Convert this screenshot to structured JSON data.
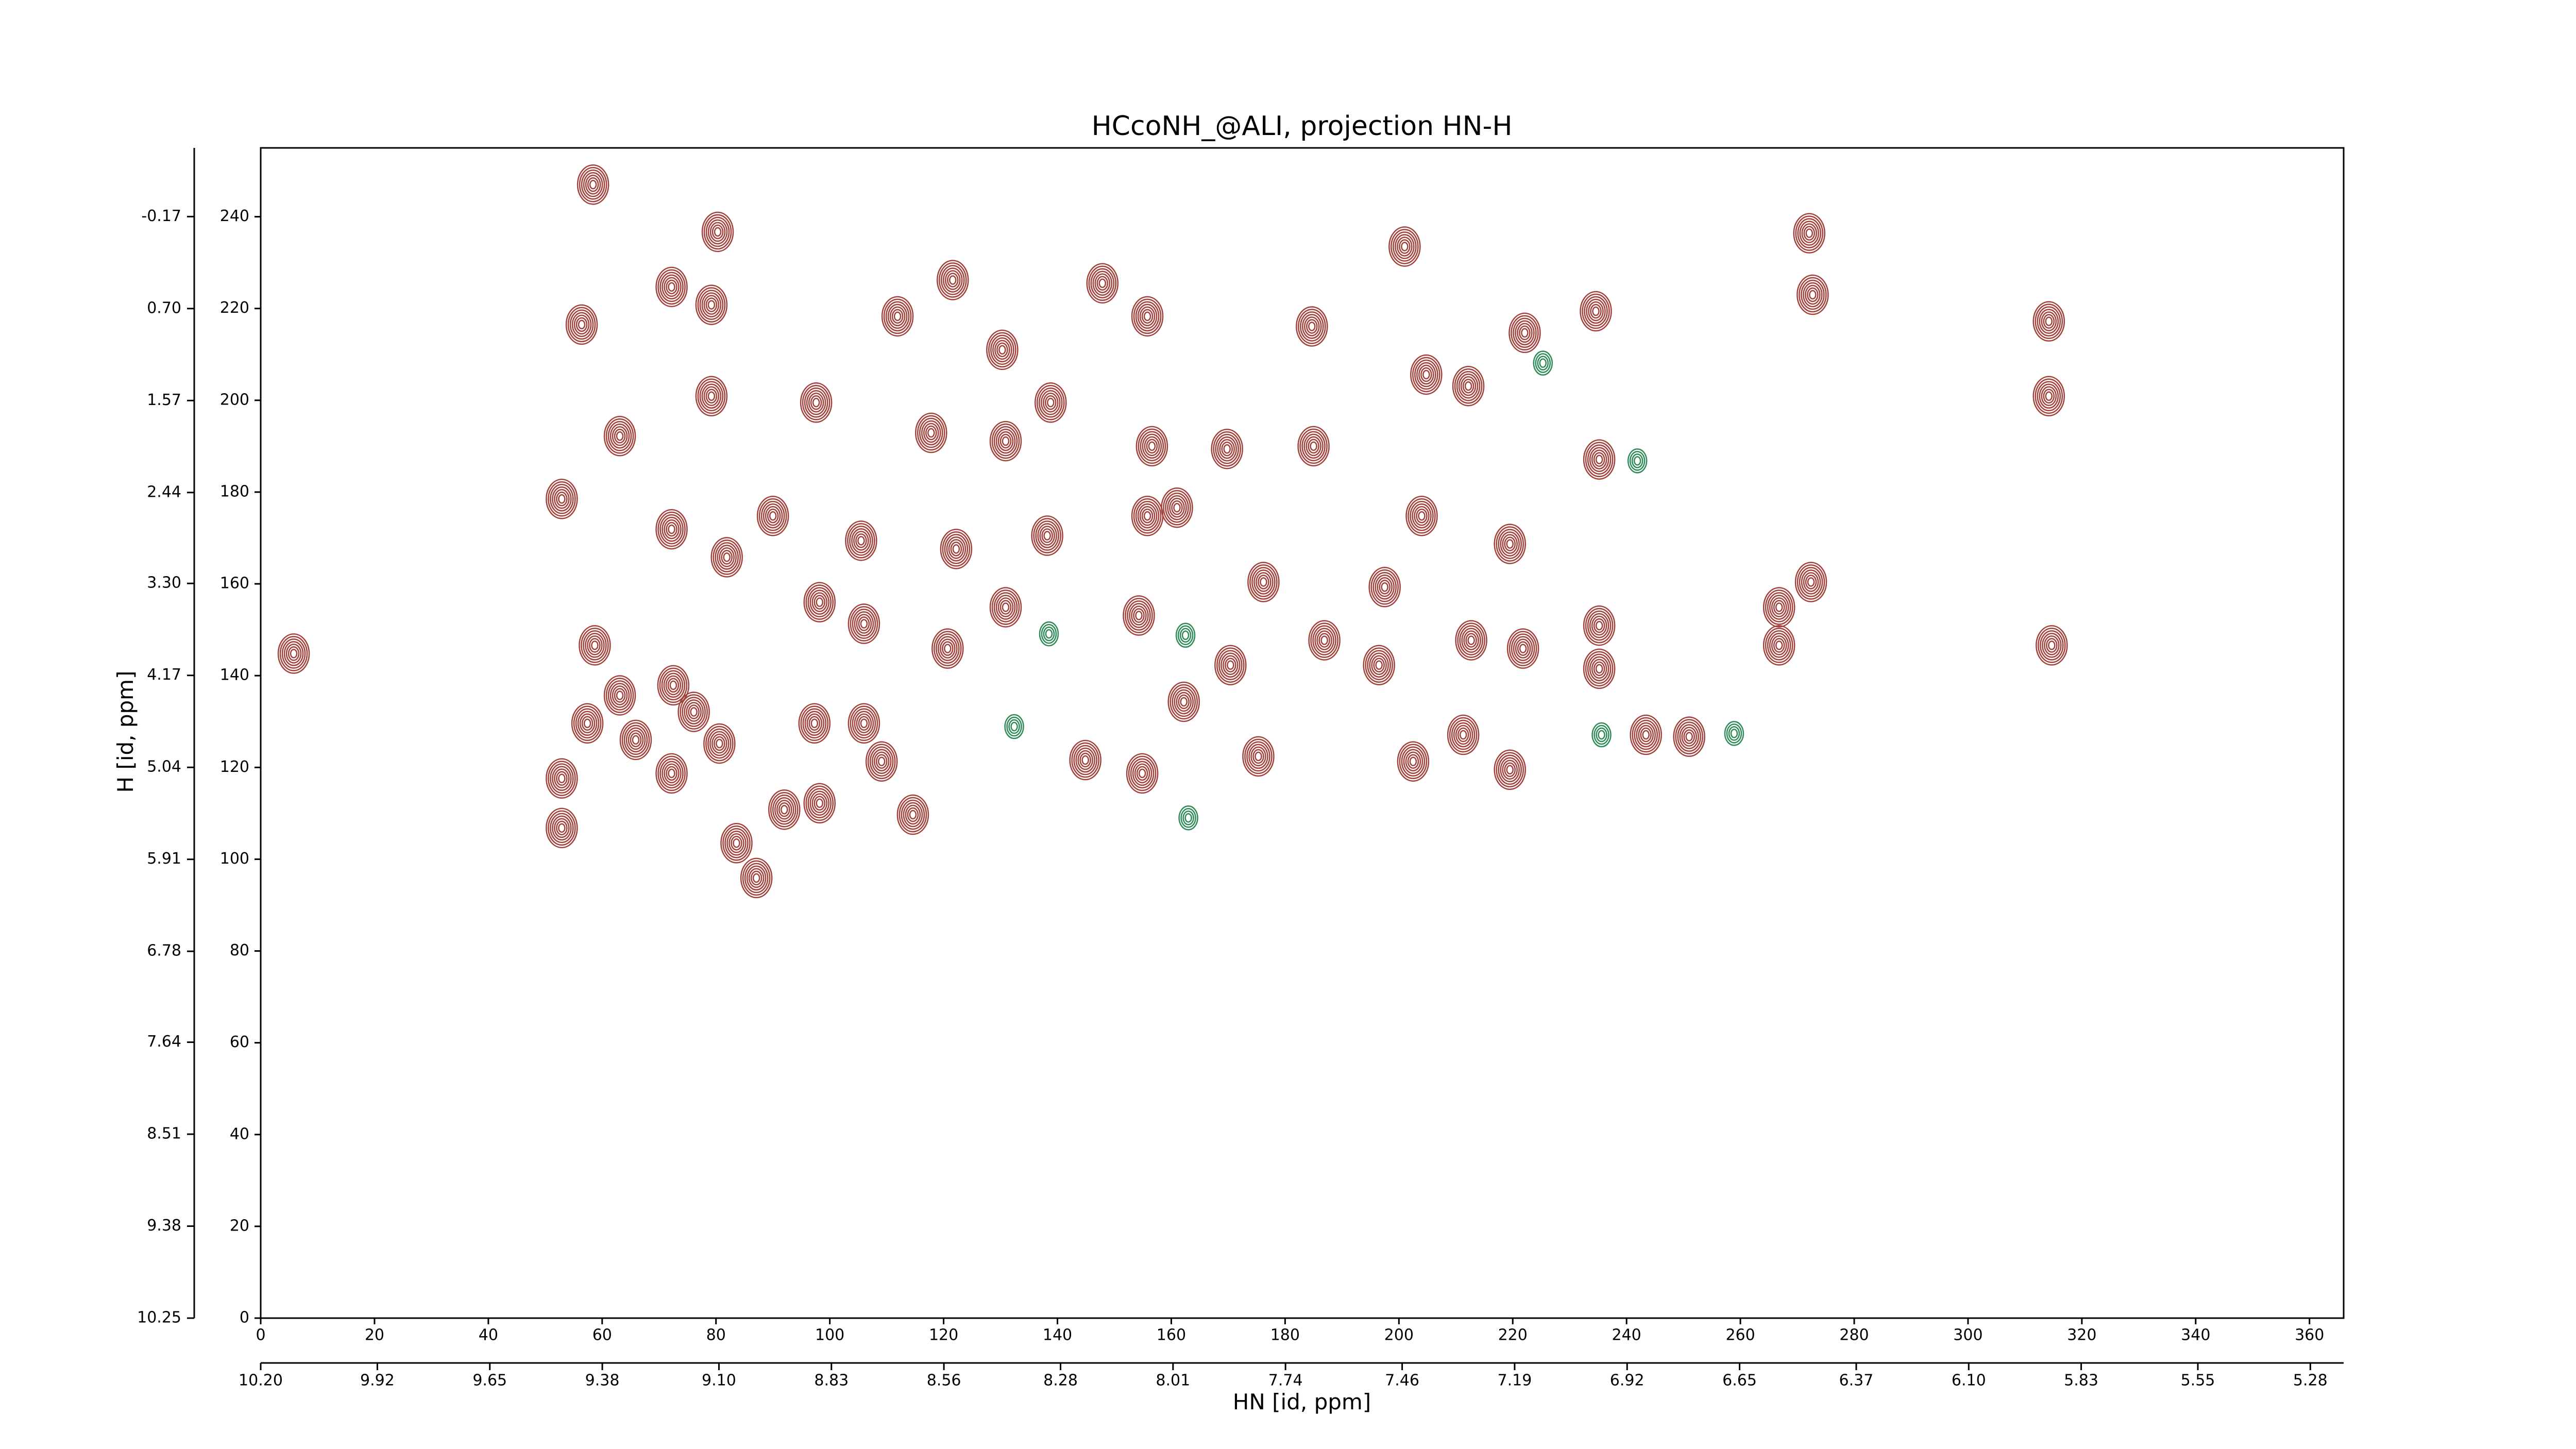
{
  "chart_data": {
    "type": "contour",
    "title": "HCcoNH_@ALI, projection HN-H",
    "x_label": "HN [id, ppm]",
    "y_label": "H [id, ppm]",
    "xlim": [
      0,
      366
    ],
    "xticks": [
      0,
      20,
      40,
      60,
      80,
      100,
      120,
      140,
      160,
      180,
      200,
      220,
      240,
      260,
      280,
      300,
      320,
      340,
      360
    ],
    "ylim": [
      0,
      255
    ],
    "yticks": [
      0,
      20,
      40,
      60,
      80,
      100,
      120,
      140,
      160,
      180,
      200,
      220,
      240
    ],
    "x2lim": [
      10.2,
      5.2
    ],
    "x2ticks": [
      {
        "value": 10.2,
        "label": "10.20"
      },
      9.92,
      9.65,
      9.38,
      {
        "value": 9.1,
        "label": "9.10"
      },
      8.83,
      8.56,
      8.28,
      8.01,
      7.74,
      7.46,
      7.19,
      6.92,
      6.65,
      6.37,
      {
        "value": 6.1,
        "label": "6.10"
      },
      5.83,
      5.55,
      5.28
    ],
    "y2lim": [
      10.25,
      -0.82
    ],
    "y2ticks": [
      10.25,
      9.38,
      8.51,
      7.64,
      6.78,
      5.91,
      5.04,
      4.17,
      {
        "value": 3.3,
        "label": "3.30"
      },
      2.44,
      1.57,
      {
        "value": 0.7,
        "label": "0.70"
      },
      -0.17
    ],
    "series": [
      {
        "color": "#a2403a",
        "x": [
          5.8,
          58.4,
          80.3,
          56.4,
          63.1,
          52.9,
          72.2,
          79.2,
          79.2,
          72.2,
          81.9,
          90,
          97.6,
          105.5,
          98.2,
          111.9,
          121.6,
          130.3,
          117.8,
          130.9,
          138.8,
          122.2,
          138.2,
          147.9,
          155.8,
          156.6,
          155.8,
          169.8,
          184.7,
          185,
          201,
          204.8,
          212.2,
          204,
          219.5,
          234.6,
          235.2,
          222.1,
          197.5,
          186.9,
          196.5,
          212.7,
          221.8,
          235.2,
          235.2,
          266.8,
          266.8,
          272.4,
          272.1,
          272.7,
          314.2,
          314.2,
          314.7,
          251,
          243.4,
          219.5,
          211.3,
          202.5,
          175.3,
          162.2,
          154.9,
          144.9,
          154.3,
          130.9,
          120.7,
          106,
          106,
          97.3,
          109.1,
          114.6,
          98.2,
          92,
          83.6,
          87.1,
          72.2,
          65.9,
          57.4,
          52.9,
          52.9,
          63.1,
          72.5,
          76.1,
          80.6,
          58.7,
          170.4,
          176.2,
          161
        ],
        "y": [
          144.8,
          247,
          236.7,
          216.5,
          192.2,
          178.5,
          224.7,
          220.8,
          200.9,
          171.9,
          165.8,
          174.8,
          199.5,
          169.4,
          156,
          218.3,
          226.2,
          211,
          192.9,
          191.1,
          199.5,
          167.6,
          170.5,
          225.5,
          218.3,
          190,
          174.8,
          189.4,
          216.1,
          190,
          233.5,
          205.6,
          203.1,
          174.8,
          168.7,
          219.4,
          187.1,
          214.7,
          159.3,
          147.7,
          142.3,
          147.7,
          145.9,
          150.9,
          141.5,
          154.9,
          146.6,
          160.4,
          236.4,
          223,
          217.2,
          200.9,
          146.6,
          126.7,
          127.1,
          119.5,
          127.1,
          121.3,
          122.4,
          134.3,
          118.7,
          121.6,
          153.1,
          154.9,
          145.9,
          151.3,
          129.6,
          129.6,
          121.3,
          109.7,
          112.2,
          110.8,
          103.5,
          95.9,
          118.7,
          126,
          129.6,
          117.6,
          106.8,
          135.7,
          137.9,
          132.1,
          125.2,
          146.6,
          142.3,
          160.4,
          176.6
        ]
      },
      {
        "color": "#2e8b57",
        "x": [
          162.5,
          138.5,
          225.3,
          241.9,
          235.6,
          258.9,
          163,
          132.4
        ],
        "y": [
          148.8,
          149.1,
          208.1,
          186.8,
          127.1,
          127.4,
          109,
          128.9
        ]
      }
    ]
  }
}
